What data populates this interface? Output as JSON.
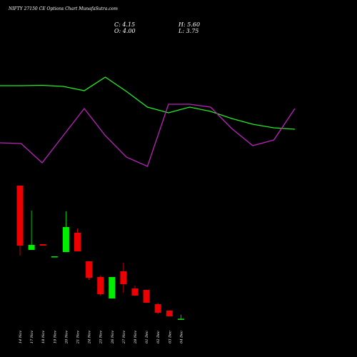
{
  "chart_data": [
    {
      "type": "line",
      "ylim": [
        0,
        160
      ],
      "series": [
        {
          "color": "#22ee22",
          "values": [
            130,
            130,
            130.5,
            129,
            123,
            142,
            122,
            100,
            92,
            100,
            94,
            84,
            76,
            71,
            69
          ]
        },
        {
          "color": "#bb22bb",
          "values": [
            50,
            49,
            22,
            60,
            98,
            60,
            30,
            17,
            104,
            104,
            100,
            70,
            46,
            54,
            98
          ]
        }
      ]
    },
    {
      "type": "candlestick",
      "title": "NIFTY 27150  CE Options  Chart MunafaSutra.com",
      "summary": [
        {
          "label": "C:",
          "value": 4.15
        },
        {
          "label": "H:",
          "value": 5.6,
          "value_label": "5.60"
        },
        {
          "label": "O:",
          "value": 4,
          "value_label": "4.00"
        },
        {
          "label": "L:",
          "value": 3.75
        }
      ],
      "categories": [
        "14 Nov",
        "17 Nov",
        "18 Nov",
        "19 Nov",
        "20 Nov",
        "21 Nov",
        "24 Nov",
        "25 Nov",
        "26 Nov",
        "27 Nov",
        "28 Nov",
        "01 Dec",
        "02 Dec",
        "03 Dec",
        "04 Dec"
      ],
      "open": [
        50.75,
        28.25,
        30.25,
        25.75,
        27.5,
        34.25,
        24.25,
        18.75,
        11.25,
        20.75,
        14.75,
        14.25,
        9.25,
        7,
        4
      ],
      "high": [
        50.75,
        42,
        30.25,
        26,
        41.75,
        35.75,
        24.25,
        19.25,
        18.75,
        23.75,
        15.75,
        14.25,
        9.75,
        7,
        5.6
      ],
      "low": [
        26.25,
        28.25,
        29.75,
        25.75,
        27.5,
        27.75,
        17.75,
        12.25,
        11.25,
        13.25,
        12.25,
        9.75,
        5.75,
        5,
        3.75
      ],
      "close": [
        29.75,
        30,
        29.75,
        26,
        36.25,
        27.75,
        18.5,
        12.75,
        18.75,
        16.25,
        12.25,
        9.75,
        6.25,
        5,
        4.15
      ],
      "up_color": "#00ee00",
      "down_color": "#ee0000",
      "ylim": [
        0.75,
        53.25
      ]
    }
  ]
}
